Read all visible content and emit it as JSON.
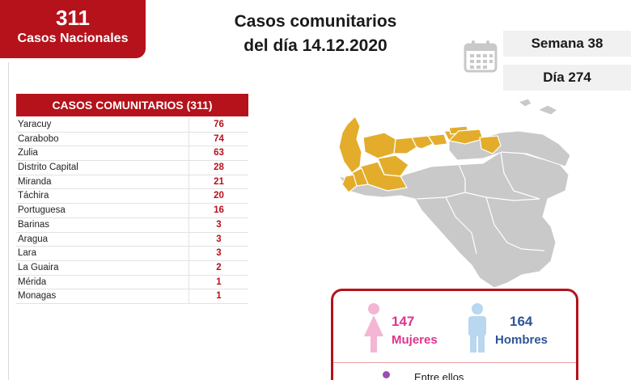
{
  "badge": {
    "total": "311",
    "label": "Casos Nacionales"
  },
  "header": {
    "line1": "Casos comunitarios",
    "line2": "del día 14.12.2020"
  },
  "week": "Semana 38",
  "day": "Día 274",
  "table": {
    "title": "CASOS COMUNITARIOS (311)",
    "rows": [
      {
        "state": "Yaracuy",
        "value": "76"
      },
      {
        "state": "Carabobo",
        "value": "74"
      },
      {
        "state": "Zulia",
        "value": "63"
      },
      {
        "state": "Distrito Capital",
        "value": "28"
      },
      {
        "state": "Miranda",
        "value": "21"
      },
      {
        "state": "Táchira",
        "value": "20"
      },
      {
        "state": "Portuguesa",
        "value": "16"
      },
      {
        "state": "Barinas",
        "value": "3"
      },
      {
        "state": "Aragua",
        "value": "3"
      },
      {
        "state": "Lara",
        "value": "3"
      },
      {
        "state": "La Guaira",
        "value": "2"
      },
      {
        "state": "Mérida",
        "value": "1"
      },
      {
        "state": "Monagas",
        "value": "1"
      }
    ]
  },
  "gender": {
    "women": {
      "count": "147",
      "label": "Mujeres"
    },
    "men": {
      "count": "164",
      "label": "Hombres"
    },
    "note": "Entre ellos"
  },
  "colors": {
    "brand_red": "#b5121b",
    "affected_state": "#e3ad2b",
    "unaffected_state": "#c9c9c9",
    "women": "#e0338f",
    "men": "#2f5597",
    "women_icon": "#f4b6d2",
    "men_icon": "#b9d7ee"
  },
  "icons": [
    "calendar-icon",
    "female-icon",
    "male-icon",
    "bullet-dot-icon"
  ]
}
